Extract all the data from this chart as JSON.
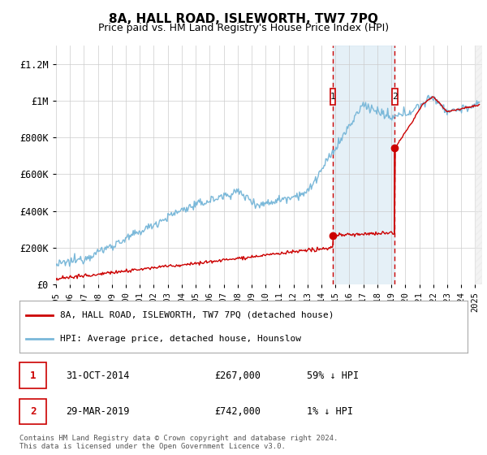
{
  "title": "8A, HALL ROAD, ISLEWORTH, TW7 7PQ",
  "subtitle": "Price paid vs. HM Land Registry's House Price Index (HPI)",
  "title_fontsize": 11,
  "subtitle_fontsize": 9,
  "ylim": [
    0,
    1300000
  ],
  "xlim_start": 1995.0,
  "xlim_end": 2025.5,
  "yticks": [
    0,
    200000,
    400000,
    600000,
    800000,
    1000000,
    1200000
  ],
  "ytick_labels": [
    "£0",
    "£200K",
    "£400K",
    "£600K",
    "£800K",
    "£1M",
    "£1.2M"
  ],
  "xtick_years": [
    1995,
    1996,
    1997,
    1998,
    1999,
    2000,
    2001,
    2002,
    2003,
    2004,
    2005,
    2006,
    2007,
    2008,
    2009,
    2010,
    2011,
    2012,
    2013,
    2014,
    2015,
    2016,
    2017,
    2018,
    2019,
    2020,
    2021,
    2022,
    2023,
    2024,
    2025
  ],
  "hpi_color": "#7ab8d9",
  "price_color": "#cc0000",
  "sale1_x": 2014.83,
  "sale1_y": 267000,
  "sale2_x": 2019.25,
  "sale2_y": 742000,
  "shade_color": "#daeaf5",
  "dashed_color": "#cc0000",
  "legend_label_red": "8A, HALL ROAD, ISLEWORTH, TW7 7PQ (detached house)",
  "legend_label_blue": "HPI: Average price, detached house, Hounslow",
  "table_row1": [
    "1",
    "31-OCT-2014",
    "£267,000",
    "59% ↓ HPI"
  ],
  "table_row2": [
    "2",
    "29-MAR-2019",
    "£742,000",
    "1% ↓ HPI"
  ],
  "footer": "Contains HM Land Registry data © Crown copyright and database right 2024.\nThis data is licensed under the Open Government Licence v3.0.",
  "background_color": "#ffffff",
  "grid_color": "#cccccc"
}
